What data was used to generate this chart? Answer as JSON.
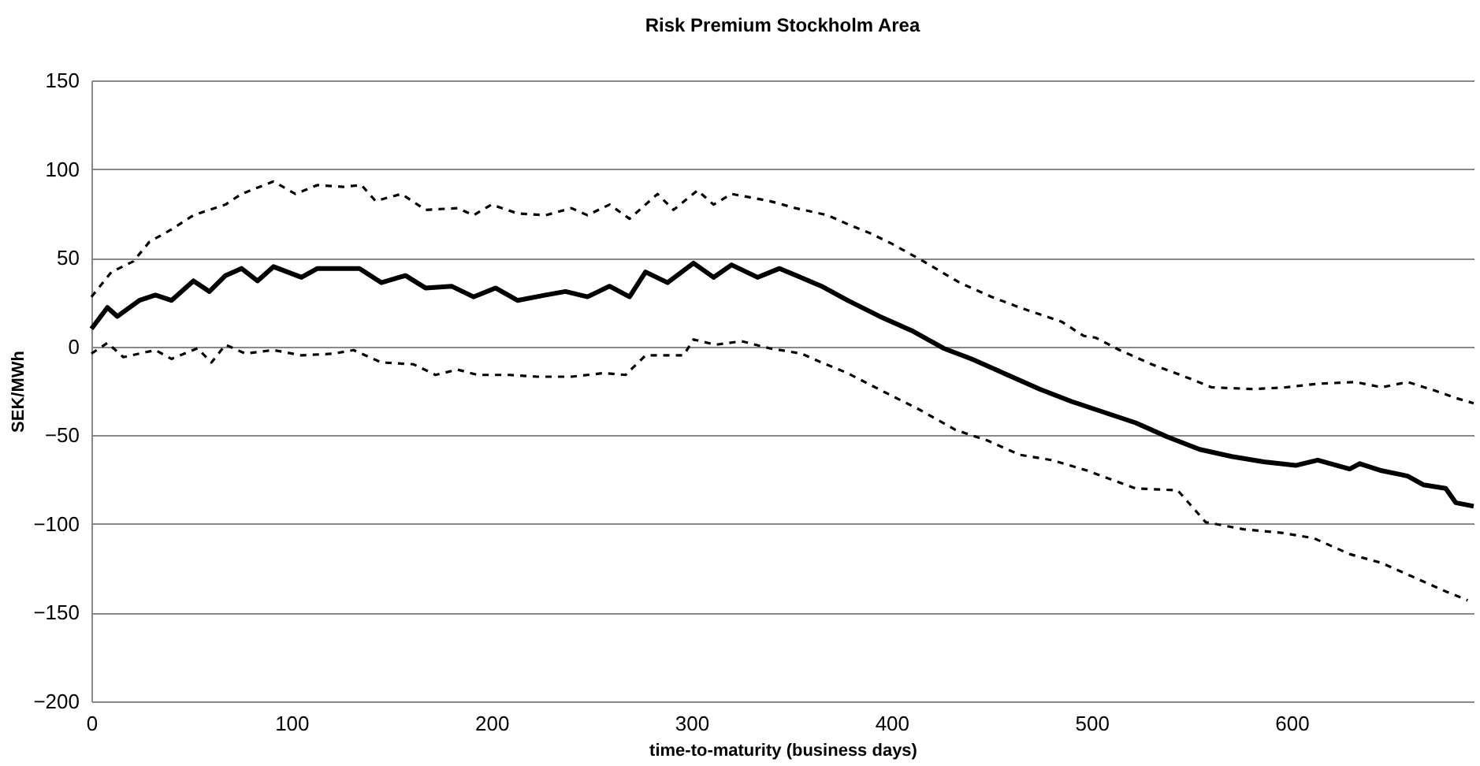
{
  "chart_data": {
    "type": "line",
    "title": "Risk Premium Stockholm Area",
    "xlabel": "time-to-maturity (business days)",
    "ylabel": "SEK/MWh",
    "xlim": [
      0,
      691
    ],
    "xticks": [
      0,
      100,
      200,
      300,
      400,
      500,
      600
    ],
    "ylim": [
      -200,
      150
    ],
    "yticks": [
      -200,
      -150,
      -100,
      -50,
      0,
      50,
      100,
      150
    ],
    "grid": "y",
    "marker": "none",
    "series": [
      {
        "color": "#000000",
        "line_style": "solid",
        "x": [
          0,
          8,
          13,
          24,
          32,
          40,
          51,
          59,
          67,
          75,
          83,
          91,
          105,
          113,
          124,
          134,
          145,
          157,
          167,
          180,
          191,
          202,
          213,
          227,
          237,
          248,
          259,
          269,
          277,
          288,
          301,
          311,
          320,
          333,
          344,
          365,
          378,
          394,
          410,
          426,
          440,
          458,
          474,
          490,
          506,
          522,
          538,
          554,
          570,
          586,
          602,
          613,
          629,
          634,
          645,
          658,
          666,
          677,
          682,
          691
        ],
        "values": [
          10,
          22,
          17,
          26,
          29,
          26,
          37,
          31,
          40,
          44,
          37,
          45,
          39,
          44,
          44,
          44,
          36,
          40,
          33,
          34,
          28,
          33,
          26,
          29,
          31,
          28,
          34,
          28,
          42,
          36,
          47,
          39,
          46,
          39,
          44,
          34,
          26,
          17,
          9,
          -1,
          -7,
          -16,
          -24,
          -31,
          -37,
          -43,
          -51,
          -58,
          -62,
          -65,
          -67,
          -64,
          -69,
          -66,
          -70,
          -73,
          -78,
          -80,
          -88,
          -90
        ]
      },
      {
        "color": "#000000",
        "line_style": "dashed",
        "x": [
          0,
          10,
          21,
          29,
          40,
          51,
          67,
          75,
          91,
          102,
          113,
          126,
          135,
          142,
          155,
          167,
          183,
          191,
          200,
          213,
          227,
          240,
          248,
          259,
          269,
          283,
          291,
          303,
          311,
          320,
          339,
          352,
          368,
          378,
          389,
          400,
          416,
          434,
          450,
          464,
          485,
          496,
          502,
          514,
          530,
          549,
          560,
          581,
          597,
          613,
          632,
          645,
          658,
          672,
          682,
          691
        ],
        "values": [
          28,
          42,
          48,
          59,
          66,
          74,
          80,
          86,
          93,
          86,
          91,
          90,
          91,
          82,
          86,
          77,
          78,
          74,
          80,
          75,
          74,
          78,
          74,
          80,
          72,
          86,
          77,
          88,
          80,
          86,
          82,
          78,
          74,
          69,
          64,
          58,
          48,
          36,
          28,
          22,
          14,
          6,
          5,
          -2,
          -10,
          -18,
          -23,
          -24,
          -23,
          -21,
          -20,
          -23,
          -20,
          -25,
          -29,
          -32
        ]
      },
      {
        "color": "#000000",
        "line_style": "dashed",
        "x": [
          0,
          8,
          16,
          32,
          40,
          53,
          60,
          67,
          77,
          91,
          105,
          121,
          131,
          145,
          161,
          172,
          183,
          193,
          209,
          223,
          240,
          256,
          267,
          277,
          296,
          301,
          312,
          325,
          339,
          355,
          365,
          378,
          397,
          413,
          432,
          448,
          464,
          480,
          498,
          522,
          543,
          557,
          576,
          595,
          611,
          629,
          645,
          661,
          677,
          688
        ],
        "values": [
          -4,
          2,
          -6,
          -2,
          -7,
          -1,
          -9,
          1,
          -4,
          -2,
          -5,
          -4,
          -2,
          -9,
          -10,
          -16,
          -13,
          -16,
          -16,
          -17,
          -17,
          -15,
          -16,
          -5,
          -5,
          4,
          1,
          3,
          -1,
          -4,
          -9,
          -15,
          -26,
          -35,
          -47,
          -53,
          -61,
          -64,
          -70,
          -80,
          -81,
          -99,
          -103,
          -105,
          -108,
          -117,
          -122,
          -130,
          -138,
          -143
        ]
      }
    ]
  }
}
